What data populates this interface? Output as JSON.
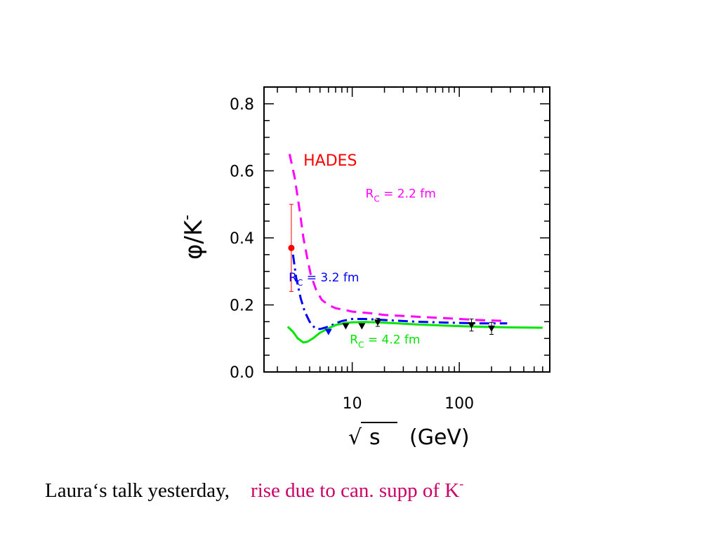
{
  "chart_data": {
    "type": "line",
    "ylabel_main": "φ/K",
    "ylabel_sup": "-",
    "xlabel_unit": "(GeV)",
    "xlabel_sqrt": "√",
    "xlabel_var": "s",
    "xscale": "log",
    "xlim": [
      1.5,
      700
    ],
    "ylim": [
      0,
      0.85
    ],
    "x_tick_labels": [
      {
        "value": 10,
        "label": "10"
      },
      {
        "value": 100,
        "label": "100"
      }
    ],
    "y_tick_labels": [
      {
        "value": 0.0,
        "label": "0.0"
      },
      {
        "value": 0.2,
        "label": "0.2"
      },
      {
        "value": 0.4,
        "label": "0.4"
      },
      {
        "value": 0.6,
        "label": "0.6"
      },
      {
        "value": 0.8,
        "label": "0.8"
      }
    ],
    "grid": false,
    "series": [
      {
        "color": "#ff00ff",
        "dash": "dashed",
        "points": [
          [
            2.6,
            0.65
          ],
          [
            2.9,
            0.58
          ],
          [
            3.2,
            0.49
          ],
          [
            3.5,
            0.4
          ],
          [
            3.8,
            0.34
          ],
          [
            4.1,
            0.29
          ],
          [
            4.6,
            0.245
          ],
          [
            5.2,
            0.215
          ],
          [
            6.0,
            0.2
          ],
          [
            7,
            0.19
          ],
          [
            8.5,
            0.185
          ],
          [
            10,
            0.18
          ],
          [
            15,
            0.175
          ],
          [
            20,
            0.17
          ],
          [
            40,
            0.165
          ],
          [
            80,
            0.16
          ],
          [
            150,
            0.155
          ],
          [
            280,
            0.152
          ]
        ]
      },
      {
        "color": "#0000ff",
        "dash": "dash-dot",
        "points": [
          [
            2.8,
            0.35
          ],
          [
            3.0,
            0.28
          ],
          [
            3.3,
            0.22
          ],
          [
            3.6,
            0.18
          ],
          [
            4.0,
            0.15
          ],
          [
            4.5,
            0.13
          ],
          [
            5.0,
            0.128
          ],
          [
            6,
            0.135
          ],
          [
            7,
            0.145
          ],
          [
            8,
            0.152
          ],
          [
            10,
            0.158
          ],
          [
            13,
            0.158
          ],
          [
            20,
            0.155
          ],
          [
            40,
            0.15
          ],
          [
            80,
            0.147
          ],
          [
            150,
            0.145
          ],
          [
            280,
            0.145
          ]
        ]
      },
      {
        "color": "#00e600",
        "dash": "solid",
        "points": [
          [
            2.5,
            0.135
          ],
          [
            2.8,
            0.12
          ],
          [
            3.1,
            0.1
          ],
          [
            3.5,
            0.088
          ],
          [
            3.8,
            0.09
          ],
          [
            4.3,
            0.1
          ],
          [
            5,
            0.117
          ],
          [
            6,
            0.13
          ],
          [
            7,
            0.14
          ],
          [
            8.5,
            0.146
          ],
          [
            10,
            0.148
          ],
          [
            13,
            0.149
          ],
          [
            20,
            0.147
          ],
          [
            40,
            0.142
          ],
          [
            80,
            0.138
          ],
          [
            150,
            0.135
          ],
          [
            300,
            0.133
          ],
          [
            600,
            0.132
          ]
        ]
      }
    ],
    "data_points": [
      {
        "x": 2.7,
        "y": 0.37,
        "err": 0.13,
        "color": "#ff0000",
        "marker": "circle",
        "label": "HADES"
      },
      {
        "x": 6.0,
        "y": 0.12,
        "err": 0.0,
        "color": "#0000ff",
        "marker": "triangle-down"
      },
      {
        "x": 8.7,
        "y": 0.137,
        "err": 0.0,
        "color": "#000000",
        "marker": "triangle-down"
      },
      {
        "x": 12.3,
        "y": 0.137,
        "err": 0.0,
        "color": "#000000",
        "marker": "triangle-down"
      },
      {
        "x": 17.3,
        "y": 0.148,
        "err": 0.012,
        "color": "#000000",
        "marker": "triangle-down"
      },
      {
        "x": 130,
        "y": 0.14,
        "err": 0.018,
        "color": "#000000",
        "marker": "triangle-down"
      },
      {
        "x": 200,
        "y": 0.13,
        "err": 0.018,
        "color": "#000000",
        "marker": "triangle-down"
      }
    ],
    "annotations": [
      {
        "text": "HADES",
        "color": "#ff0000",
        "x": 3.5,
        "y": 0.615,
        "style": "hades"
      },
      {
        "text": "R",
        "sub": "C",
        "rest": " = 2.2 fm",
        "color": "#ff00ff",
        "x": 13.3,
        "y": 0.52
      },
      {
        "text": "R",
        "sub": "C",
        "rest": " = 3.2 fm",
        "color": "#0000ff",
        "x": 2.55,
        "y": 0.27
      },
      {
        "text": "R",
        "sub": "C",
        "rest": " = 4.2 fm",
        "color": "#00e600",
        "x": 9.5,
        "y": 0.085
      }
    ]
  },
  "caption": {
    "part1": "Laura‘s talk yesterday,",
    "part2": "rise due to can. supp of K",
    "part2_sup": "-"
  }
}
